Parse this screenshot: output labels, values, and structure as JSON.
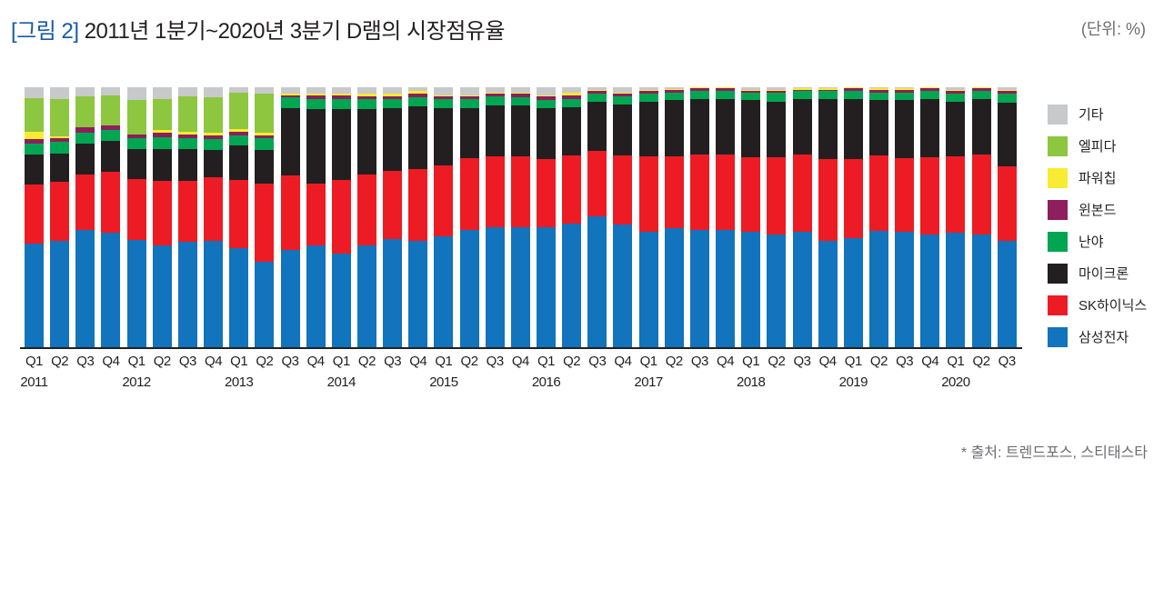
{
  "header": {
    "figure_label": "[그림 2]",
    "title": "2011년 1분기~2020년 3분기 D램의 시장점유율",
    "unit": "(단위: %)"
  },
  "footer": {
    "source": "* 출처: 트렌드포스, 스티태스타"
  },
  "legend": [
    {
      "label": "기타",
      "color": "#c8c9cb"
    },
    {
      "label": "엘피다",
      "color": "#8dc63f"
    },
    {
      "label": "파워칩",
      "color": "#f7ec31"
    },
    {
      "label": "윈본드",
      "color": "#8e1e5c"
    },
    {
      "label": "난야",
      "color": "#00a651"
    },
    {
      "label": "마이크론",
      "color": "#231f20"
    },
    {
      "label": "SK하이닉스",
      "color": "#ed1c24"
    },
    {
      "label": "삼성전자",
      "color": "#1174bc"
    }
  ],
  "chart_data": {
    "type": "bar",
    "stacked": true,
    "title": "2011년 1분기~2020년 3분기 D램의 시장점유율",
    "xlabel": "",
    "ylabel": "",
    "unit": "%",
    "ylim": [
      0,
      100
    ],
    "grid": false,
    "legend_position": "right",
    "categories": [
      "2011 Q1",
      "2011 Q2",
      "2011 Q3",
      "2011 Q4",
      "2012 Q1",
      "2012 Q2",
      "2012 Q3",
      "2012 Q4",
      "2013 Q1",
      "2013 Q2",
      "2013 Q3",
      "2013 Q4",
      "2014 Q1",
      "2014 Q2",
      "2014 Q3",
      "2014 Q4",
      "2015 Q1",
      "2015 Q2",
      "2015 Q3",
      "2015 Q4",
      "2016 Q1",
      "2016 Q2",
      "2016 Q3",
      "2016 Q4",
      "2017 Q1",
      "2017 Q2",
      "2017 Q3",
      "2017 Q4",
      "2018 Q1",
      "2018 Q2",
      "2018 Q3",
      "2018 Q4",
      "2019 Q1",
      "2019 Q2",
      "2019 Q3",
      "2019 Q4",
      "2020 Q1",
      "2020 Q2",
      "2020 Q3"
    ],
    "x_tick_labels": [
      "Q1",
      "Q2",
      "Q3",
      "Q4",
      "Q1",
      "Q2",
      "Q3",
      "Q4",
      "Q1",
      "Q2",
      "Q3",
      "Q4",
      "Q1",
      "Q2",
      "Q3",
      "Q4",
      "Q1",
      "Q2",
      "Q3",
      "Q4",
      "Q1",
      "Q2",
      "Q3",
      "Q4",
      "Q1",
      "Q2",
      "Q3",
      "Q4",
      "Q1",
      "Q2",
      "Q3",
      "Q4",
      "Q1",
      "Q2",
      "Q3",
      "Q4",
      "Q1",
      "Q2",
      "Q3"
    ],
    "year_labels": [
      {
        "label": "2011",
        "index": 0
      },
      {
        "label": "2012",
        "index": 4
      },
      {
        "label": "2013",
        "index": 8
      },
      {
        "label": "2014",
        "index": 12
      },
      {
        "label": "2015",
        "index": 16
      },
      {
        "label": "2016",
        "index": 20
      },
      {
        "label": "2017",
        "index": 24
      },
      {
        "label": "2018",
        "index": 28
      },
      {
        "label": "2019",
        "index": 32
      },
      {
        "label": "2020",
        "index": 36
      }
    ],
    "series": [
      {
        "name": "삼성전자",
        "color": "#1174bc",
        "values": [
          40,
          41,
          45,
          44,
          41,
          39,
          40,
          41,
          38,
          33,
          37.5,
          39,
          36,
          39,
          41.5,
          41,
          42.5,
          45,
          46,
          46,
          46,
          47,
          49.5,
          47,
          44.5,
          45.5,
          45,
          45.5,
          44.5,
          43.5,
          44.5,
          41,
          42,
          45,
          44.5,
          43.5,
          44,
          43.5,
          41
        ]
      },
      {
        "name": "SK하이닉스",
        "color": "#ed1c24",
        "values": [
          22.5,
          22.5,
          21.5,
          23.5,
          23.5,
          24.5,
          23.5,
          24.5,
          26.5,
          30,
          28.5,
          24,
          28.5,
          27.5,
          26.5,
          27.5,
          27.5,
          27.5,
          27.5,
          27.5,
          26.5,
          26,
          24.5,
          26.5,
          29,
          27.5,
          29,
          29,
          28.5,
          29.5,
          29.5,
          31.5,
          30.5,
          29,
          28.5,
          29.5,
          29.5,
          30.5,
          28.5
        ]
      },
      {
        "name": "마이크론",
        "color": "#231f20",
        "values": [
          11.5,
          11,
          12,
          12,
          11.5,
          12.5,
          12,
          10.5,
          13,
          13,
          26,
          28.5,
          27,
          25,
          24,
          24,
          22,
          19,
          19.5,
          19.5,
          19.5,
          18.5,
          18.5,
          19.5,
          21,
          21.5,
          21.5,
          21.5,
          22,
          21.5,
          21.5,
          23,
          23,
          21.5,
          22.5,
          22.5,
          21,
          21.5,
          24.5
        ]
      },
      {
        "name": "난야",
        "color": "#00a651",
        "values": [
          4.3,
          4.5,
          4,
          4,
          4,
          4.5,
          4,
          4,
          4,
          4.5,
          4,
          4,
          4,
          4,
          3.5,
          3.5,
          3.5,
          3.5,
          3.5,
          3,
          3,
          3,
          3,
          3,
          3,
          3,
          3,
          3,
          3,
          3.5,
          3,
          3,
          3,
          3,
          3,
          3,
          3,
          3,
          3.5
        ]
      },
      {
        "name": "윈본드",
        "color": "#8e1e5c",
        "values": [
          1.7,
          1.5,
          2,
          2,
          1.5,
          1.5,
          1.5,
          1.5,
          1.5,
          1,
          1,
          1.5,
          1.5,
          1,
          1,
          1.5,
          1,
          1,
          1,
          1.5,
          1.5,
          1.5,
          1,
          1,
          1,
          1,
          1,
          1,
          0.5,
          0.5,
          0.5,
          0.5,
          1,
          1,
          1,
          1,
          1,
          1,
          1
        ]
      },
      {
        "name": "파워칩",
        "color": "#f7ec31",
        "values": [
          2.9,
          0.5,
          0,
          0,
          0,
          1,
          1,
          1,
          1,
          1,
          0.5,
          0.5,
          0.5,
          1,
          1,
          1,
          0.5,
          0.5,
          0.5,
          0.5,
          0.5,
          1,
          0.5,
          0.5,
          0.5,
          0.5,
          0.5,
          0.5,
          0.5,
          0.5,
          0.5,
          0.5,
          0.5,
          0.5,
          0.5,
          0.5,
          0.5,
          0.5,
          0.5
        ]
      },
      {
        "name": "엘피다",
        "color": "#8dc63f",
        "values": [
          13,
          14.5,
          12,
          11.5,
          13,
          12,
          13.5,
          13.5,
          14,
          15,
          0,
          0,
          0,
          0,
          0,
          0,
          0,
          0,
          0,
          0,
          0,
          0,
          0,
          0,
          0,
          0,
          0,
          0,
          0,
          0,
          0,
          0,
          0,
          0,
          0,
          0,
          0,
          0,
          0
        ]
      },
      {
        "name": "기타",
        "color": "#c8c9cb",
        "values": [
          4.1,
          4.5,
          3.5,
          3,
          5,
          4.5,
          3.5,
          4,
          2,
          2.5,
          2.5,
          2.5,
          2.5,
          2.5,
          2.5,
          1.5,
          3,
          3,
          2,
          2,
          3,
          2,
          1,
          2,
          1,
          0.5,
          0,
          0,
          1,
          1,
          0.5,
          0.5,
          0,
          0.5,
          0.5,
          0,
          1,
          0,
          1
        ]
      }
    ]
  }
}
